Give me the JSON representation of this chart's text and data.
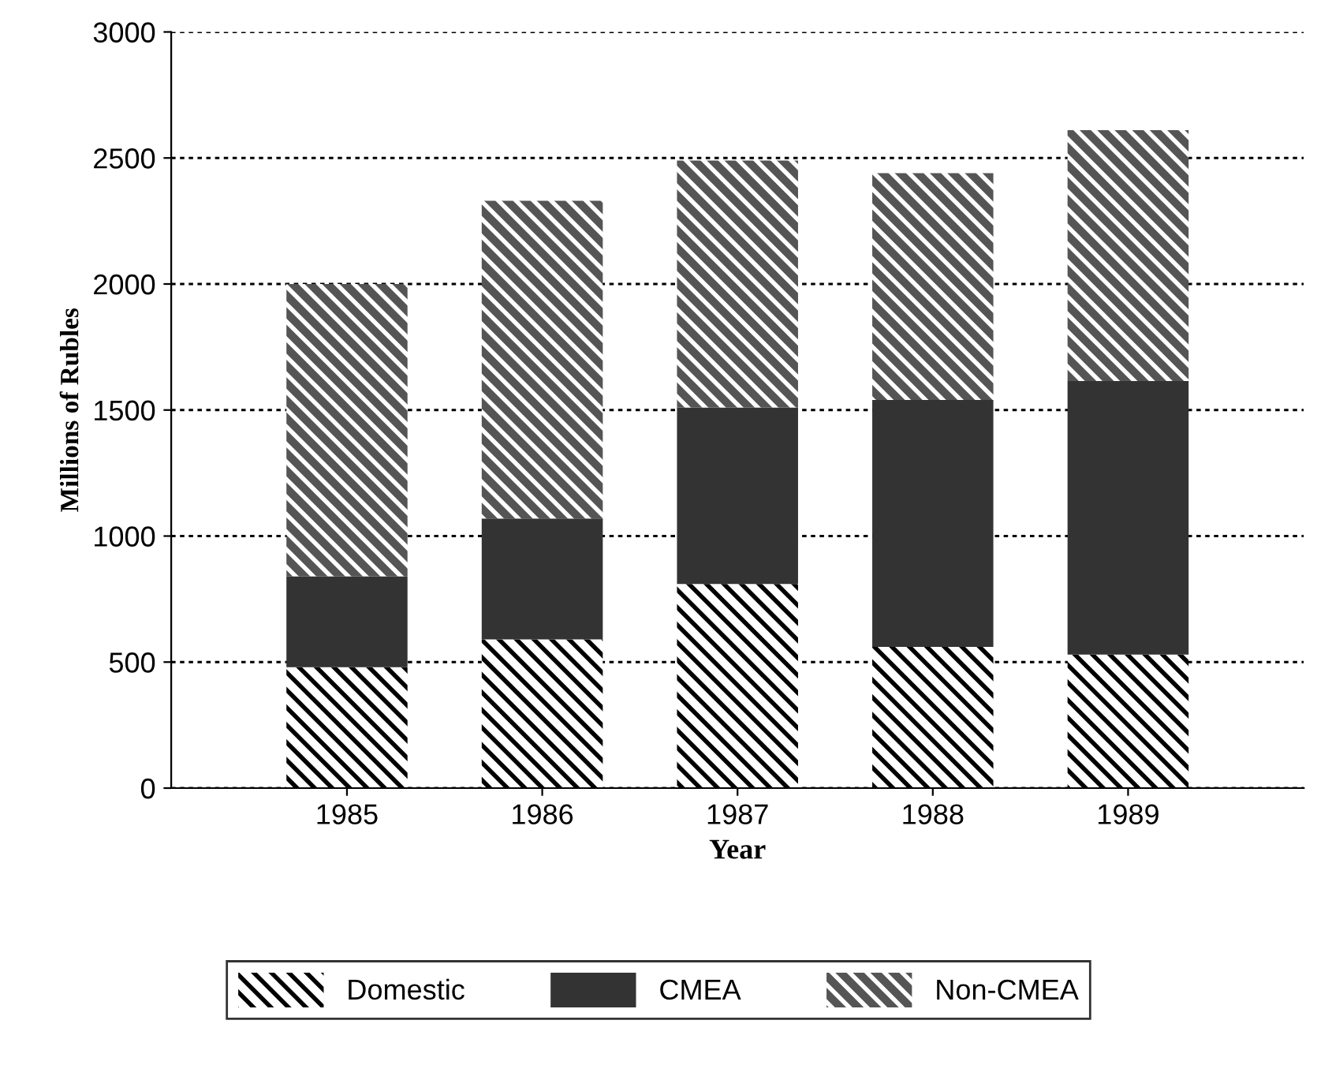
{
  "chart_data": {
    "type": "bar",
    "stacked": true,
    "xlabel": "Year",
    "ylabel": "Millions of Rubles",
    "categories": [
      "1985",
      "1986",
      "1987",
      "1988",
      "1989"
    ],
    "series": [
      {
        "name": "Domestic",
        "color": "#ffffff",
        "values": [
          480,
          590,
          810,
          560,
          530
        ]
      },
      {
        "name": "CMEA",
        "color": "#333333",
        "values": [
          360,
          480,
          700,
          980,
          1085
        ]
      },
      {
        "name": "Non-CMEA",
        "color": "#555555",
        "values": [
          1160,
          1260,
          980,
          900,
          995
        ]
      }
    ],
    "ylim": [
      0,
      3000
    ],
    "yticks": [
      0,
      500,
      1000,
      1500,
      2000,
      2500,
      3000
    ],
    "grid": "y",
    "legend": "bottom"
  }
}
